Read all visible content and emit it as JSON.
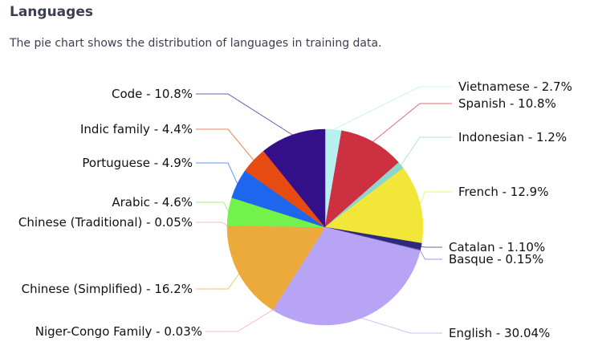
{
  "section": {
    "title": "Languages",
    "description": "The pie chart shows the distribution of languages in training data."
  },
  "chart_data": {
    "type": "pie",
    "title": "",
    "start_angle_deg": 90,
    "direction": "clockwise",
    "slices": [
      {
        "name": "Vietnamese",
        "label": "Vietnamese - 2.7%",
        "value": 2.7,
        "color": "#b8f0f0"
      },
      {
        "name": "Spanish",
        "label": "Spanish - 10.8%",
        "value": 10.8,
        "color": "#cd3040"
      },
      {
        "name": "Indonesian",
        "label": "Indonesian - 1.2%",
        "value": 1.2,
        "color": "#8ed6cc"
      },
      {
        "name": "French",
        "label": "French - 12.9%",
        "value": 12.9,
        "color": "#f2e738"
      },
      {
        "name": "Catalan",
        "label": "Catalan - 1.10%",
        "value": 1.1,
        "color": "#2d2a7a"
      },
      {
        "name": "Basque",
        "label": "Basque - 0.15%",
        "value": 0.15,
        "color": "#8a5cd8"
      },
      {
        "name": "English",
        "label": "English - 30.04%",
        "value": 30.04,
        "color": "#b8a4f4"
      },
      {
        "name": "Niger-Congo Family",
        "label": "Niger-Congo Family - 0.03%",
        "value": 0.03,
        "color": "#f4a0a8"
      },
      {
        "name": "Chinese (Simplified)",
        "label": "Chinese (Simplified) - 16.2%",
        "value": 16.2,
        "color": "#ecaa3c"
      },
      {
        "name": "Chinese (Traditional)",
        "label": "Chinese (Traditional) - 0.05%",
        "value": 0.05,
        "color": "#f4a0a0"
      },
      {
        "name": "Arabic",
        "label": "Arabic - 4.6%",
        "value": 4.6,
        "color": "#72f24a"
      },
      {
        "name": "Portuguese",
        "label": "Portuguese - 4.9%",
        "value": 4.9,
        "color": "#1e66ee"
      },
      {
        "name": "Indic family",
        "label": "Indic family - 4.4%",
        "value": 4.4,
        "color": "#e64c12"
      },
      {
        "name": "Code",
        "label": "Code - 10.8%",
        "value": 10.8,
        "color": "#33108a"
      }
    ]
  }
}
